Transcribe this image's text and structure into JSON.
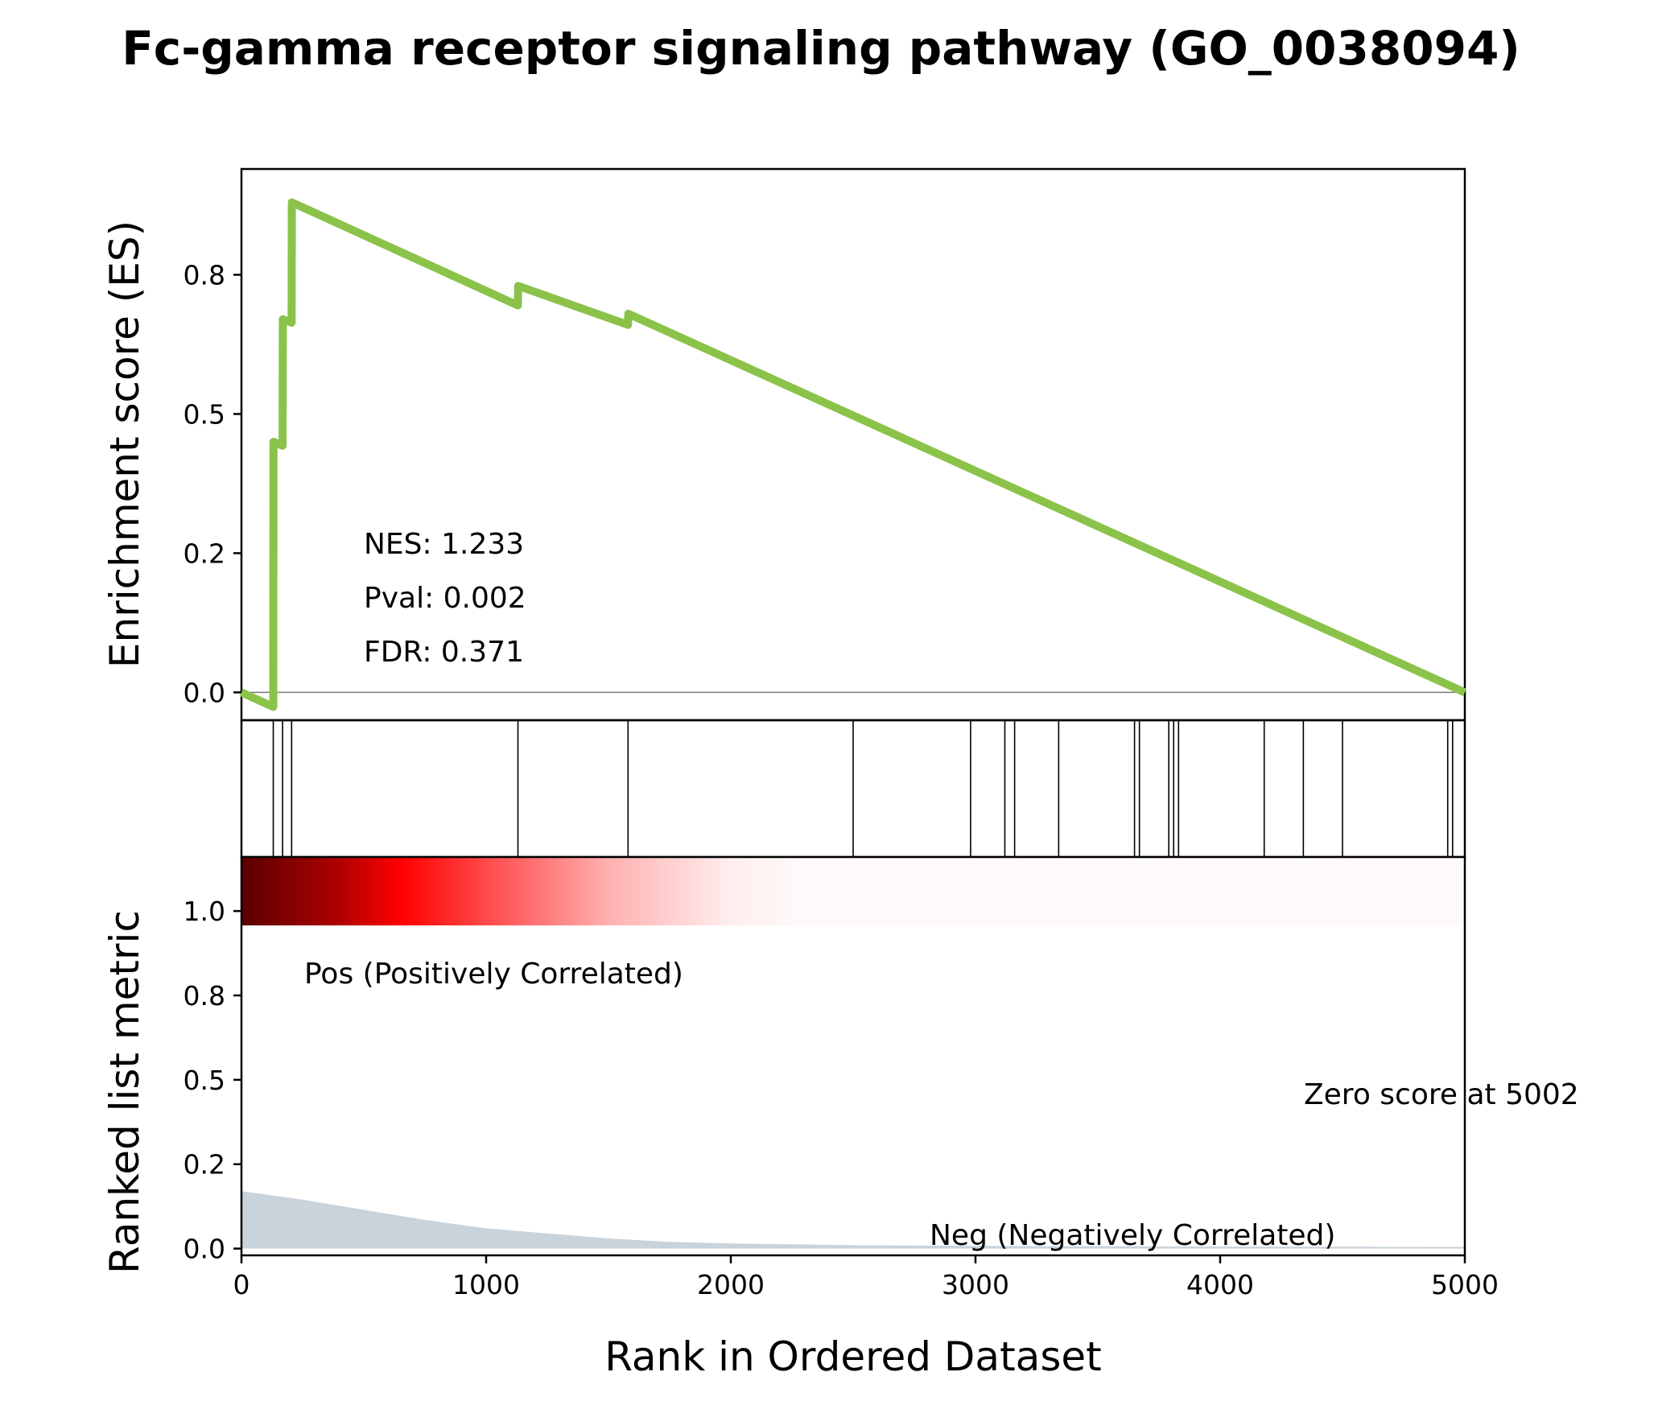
{
  "chart_data": {
    "type": "line",
    "title": "Fc-gamma receptor signaling pathway (GO_0038094)",
    "xlabel": "Rank in Ordered Dataset",
    "xlim": [
      0,
      5000
    ],
    "x_ticks": [
      "0",
      "1000",
      "2000",
      "3000",
      "4000",
      "5000"
    ],
    "es_panel": {
      "ylabel": "Enrichment score (ES)",
      "ylim": [
        -0.05,
        0.94
      ],
      "y_ticks": [
        {
          "value": 0.0,
          "label": "0.0"
        },
        {
          "value": 0.25,
          "label": "0.2"
        },
        {
          "value": 0.5,
          "label": "0.5"
        },
        {
          "value": 0.75,
          "label": "0.8"
        }
      ],
      "zero_line": true,
      "line_color": "#8bc34a",
      "series": [
        {
          "x": [
            0,
            130,
            131,
            168,
            169,
            205,
            206,
            1130,
            1131,
            1580,
            1581,
            5000
          ],
          "y": [
            0.0,
            -0.026,
            0.45,
            0.443,
            0.67,
            0.664,
            0.88,
            0.695,
            0.73,
            0.66,
            0.68,
            0.0
          ]
        }
      ],
      "stats": {
        "nes": "NES: 1.233",
        "pval": "Pval: 0.002",
        "fdr": "FDR: 0.371"
      }
    },
    "hits_panel": {
      "positions": [
        130,
        168,
        205,
        1130,
        1580,
        2500,
        2980,
        3120,
        3160,
        3340,
        3650,
        3670,
        3790,
        3810,
        3830,
        4180,
        4340,
        4500,
        4930,
        4950,
        5000
      ]
    },
    "metric_panel": {
      "ylabel": "Ranked list metric",
      "ylim": [
        -0.02,
        1.16
      ],
      "y_ticks": [
        {
          "value": 0.0,
          "label": "0.0"
        },
        {
          "value": 0.25,
          "label": "0.2"
        },
        {
          "value": 0.5,
          "label": "0.5"
        },
        {
          "value": 0.75,
          "label": "0.8"
        },
        {
          "value": 1.0,
          "label": "1.0"
        }
      ],
      "fill_color": "#c9d3db",
      "metric": {
        "x": [
          0,
          250,
          500,
          750,
          1000,
          1250,
          1500,
          1750,
          2000,
          2500,
          3000,
          4000,
          5000
        ],
        "y": [
          0.17,
          0.145,
          0.115,
          0.085,
          0.06,
          0.045,
          0.03,
          0.02,
          0.015,
          0.01,
          0.008,
          0.006,
          0.005
        ]
      },
      "pos_label": "Pos (Positively Correlated)",
      "neg_label": "Neg (Negatively Correlated)",
      "zero_score": "Zero score at 5002",
      "pos_color": "#ff0000",
      "neg_color": "#0000ff"
    }
  }
}
